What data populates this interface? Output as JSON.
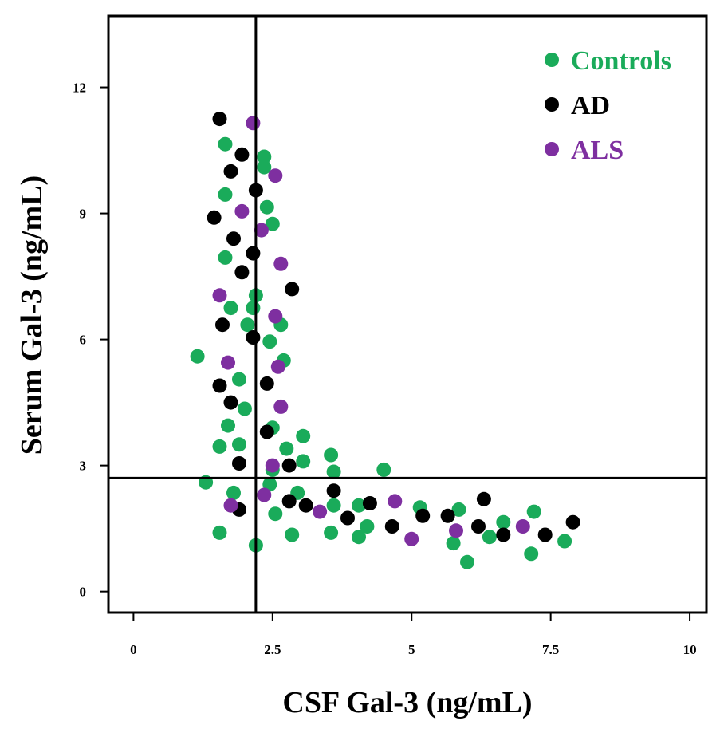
{
  "chart_data": {
    "type": "scatter",
    "title": "",
    "xlabel": "CSF Gal-3 (ng/mL)",
    "ylabel": "Serum Gal-3 (ng/mL)",
    "xlim": [
      -0.45,
      10.3
    ],
    "ylim": [
      -0.5,
      13.7
    ],
    "x_ticks": [
      0,
      2.5,
      5,
      7.5,
      10
    ],
    "x_tick_labels": [
      "0",
      "2.5",
      "5",
      "7.5",
      "10"
    ],
    "y_ticks": [
      0,
      3,
      6,
      9,
      12
    ],
    "y_tick_labels": [
      "0",
      "3",
      "6",
      "9",
      "12"
    ],
    "cutoff_lines": {
      "x": 2.2,
      "y": 2.7
    },
    "legend_position": "top-right",
    "series": [
      {
        "name": "Controls",
        "color": "#1aab5a",
        "points": [
          [
            1.65,
            10.65
          ],
          [
            2.35,
            10.35
          ],
          [
            2.35,
            10.1
          ],
          [
            1.65,
            9.45
          ],
          [
            2.4,
            9.15
          ],
          [
            2.5,
            8.75
          ],
          [
            1.65,
            7.95
          ],
          [
            2.2,
            7.05
          ],
          [
            1.75,
            6.75
          ],
          [
            2.15,
            6.75
          ],
          [
            2.05,
            6.35
          ],
          [
            2.65,
            6.35
          ],
          [
            2.45,
            5.95
          ],
          [
            1.15,
            5.6
          ],
          [
            2.7,
            5.5
          ],
          [
            1.9,
            5.05
          ],
          [
            2.0,
            4.35
          ],
          [
            2.5,
            3.9
          ],
          [
            1.7,
            3.95
          ],
          [
            3.05,
            3.7
          ],
          [
            1.9,
            3.5
          ],
          [
            1.55,
            3.45
          ],
          [
            2.75,
            3.4
          ],
          [
            3.55,
            3.25
          ],
          [
            3.05,
            3.1
          ],
          [
            2.5,
            2.9
          ],
          [
            3.6,
            2.85
          ],
          [
            4.5,
            2.9
          ],
          [
            1.3,
            2.6
          ],
          [
            2.45,
            2.55
          ],
          [
            1.8,
            2.35
          ],
          [
            2.95,
            2.35
          ],
          [
            3.6,
            2.05
          ],
          [
            4.05,
            2.05
          ],
          [
            5.15,
            2.0
          ],
          [
            5.85,
            1.95
          ],
          [
            7.2,
            1.9
          ],
          [
            2.55,
            1.85
          ],
          [
            6.65,
            1.65
          ],
          [
            4.2,
            1.55
          ],
          [
            1.55,
            1.4
          ],
          [
            3.55,
            1.4
          ],
          [
            4.05,
            1.3
          ],
          [
            2.85,
            1.35
          ],
          [
            6.4,
            1.3
          ],
          [
            7.75,
            1.2
          ],
          [
            5.75,
            1.15
          ],
          [
            2.2,
            1.1
          ],
          [
            7.15,
            0.9
          ],
          [
            6.0,
            0.7
          ]
        ]
      },
      {
        "name": "AD",
        "color": "#000000",
        "points": [
          [
            1.55,
            11.25
          ],
          [
            1.95,
            10.4
          ],
          [
            1.75,
            10.0
          ],
          [
            2.2,
            9.55
          ],
          [
            1.45,
            8.9
          ],
          [
            1.8,
            8.4
          ],
          [
            2.15,
            8.05
          ],
          [
            1.95,
            7.6
          ],
          [
            2.85,
            7.2
          ],
          [
            1.6,
            6.35
          ],
          [
            2.15,
            6.05
          ],
          [
            1.55,
            4.9
          ],
          [
            2.4,
            4.95
          ],
          [
            1.75,
            4.5
          ],
          [
            2.4,
            3.8
          ],
          [
            1.9,
            3.05
          ],
          [
            2.8,
            3.0
          ],
          [
            3.6,
            2.4
          ],
          [
            6.3,
            2.2
          ],
          [
            2.8,
            2.15
          ],
          [
            3.1,
            2.05
          ],
          [
            4.25,
            2.1
          ],
          [
            1.9,
            1.95
          ],
          [
            3.85,
            1.75
          ],
          [
            5.2,
            1.8
          ],
          [
            5.65,
            1.8
          ],
          [
            4.65,
            1.55
          ],
          [
            6.2,
            1.55
          ],
          [
            7.9,
            1.65
          ],
          [
            6.65,
            1.35
          ],
          [
            7.4,
            1.35
          ]
        ]
      },
      {
        "name": "ALS",
        "color": "#7e2fa0",
        "points": [
          [
            2.15,
            11.15
          ],
          [
            2.55,
            9.9
          ],
          [
            1.95,
            9.05
          ],
          [
            2.3,
            8.6
          ],
          [
            2.65,
            7.8
          ],
          [
            1.55,
            7.05
          ],
          [
            2.55,
            6.55
          ],
          [
            1.7,
            5.45
          ],
          [
            2.6,
            5.35
          ],
          [
            2.65,
            4.4
          ],
          [
            2.5,
            3.0
          ],
          [
            4.7,
            2.15
          ],
          [
            1.75,
            2.05
          ],
          [
            3.35,
            1.9
          ],
          [
            2.35,
            2.3
          ],
          [
            7.0,
            1.55
          ],
          [
            5.8,
            1.45
          ],
          [
            5.0,
            1.25
          ]
        ]
      }
    ]
  }
}
